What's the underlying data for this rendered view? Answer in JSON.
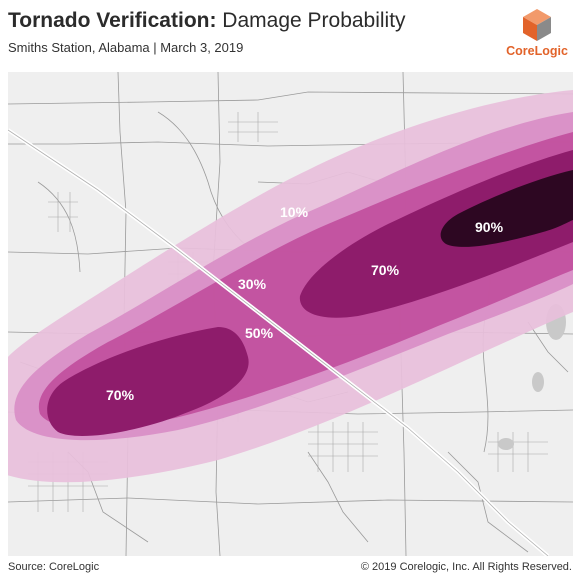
{
  "header": {
    "title_bold": "Tornado Verification:",
    "title_rest": " Damage Probability",
    "subtitle": "Smiths Station, Alabama | March 3, 2019"
  },
  "logo": {
    "name": "CoreLogic",
    "colors": {
      "orange": "#e2632a",
      "light_orange": "#f29a6b",
      "grey": "#8a8a8a"
    }
  },
  "map": {
    "background": "#efefef",
    "road_color": "#9a9a9a",
    "highway_color": "#ffffff",
    "zones": [
      {
        "name": "10%",
        "color": "#e8bfdc"
      },
      {
        "name": "30%",
        "color": "#d98fc6"
      },
      {
        "name": "50%",
        "color": "#c2529f"
      },
      {
        "name": "70%",
        "color": "#8e1c6b"
      },
      {
        "name": "90%",
        "color": "#2d0722"
      }
    ],
    "labels": {
      "p10": "10%",
      "p30": "30%",
      "p50": "50%",
      "p70_east": "70%",
      "p70_west": "70%",
      "p90": "90%"
    }
  },
  "footer": {
    "source": "Source: CoreLogic",
    "copyright": "© 2019 Corelogic, Inc. All Rights Reserved."
  }
}
